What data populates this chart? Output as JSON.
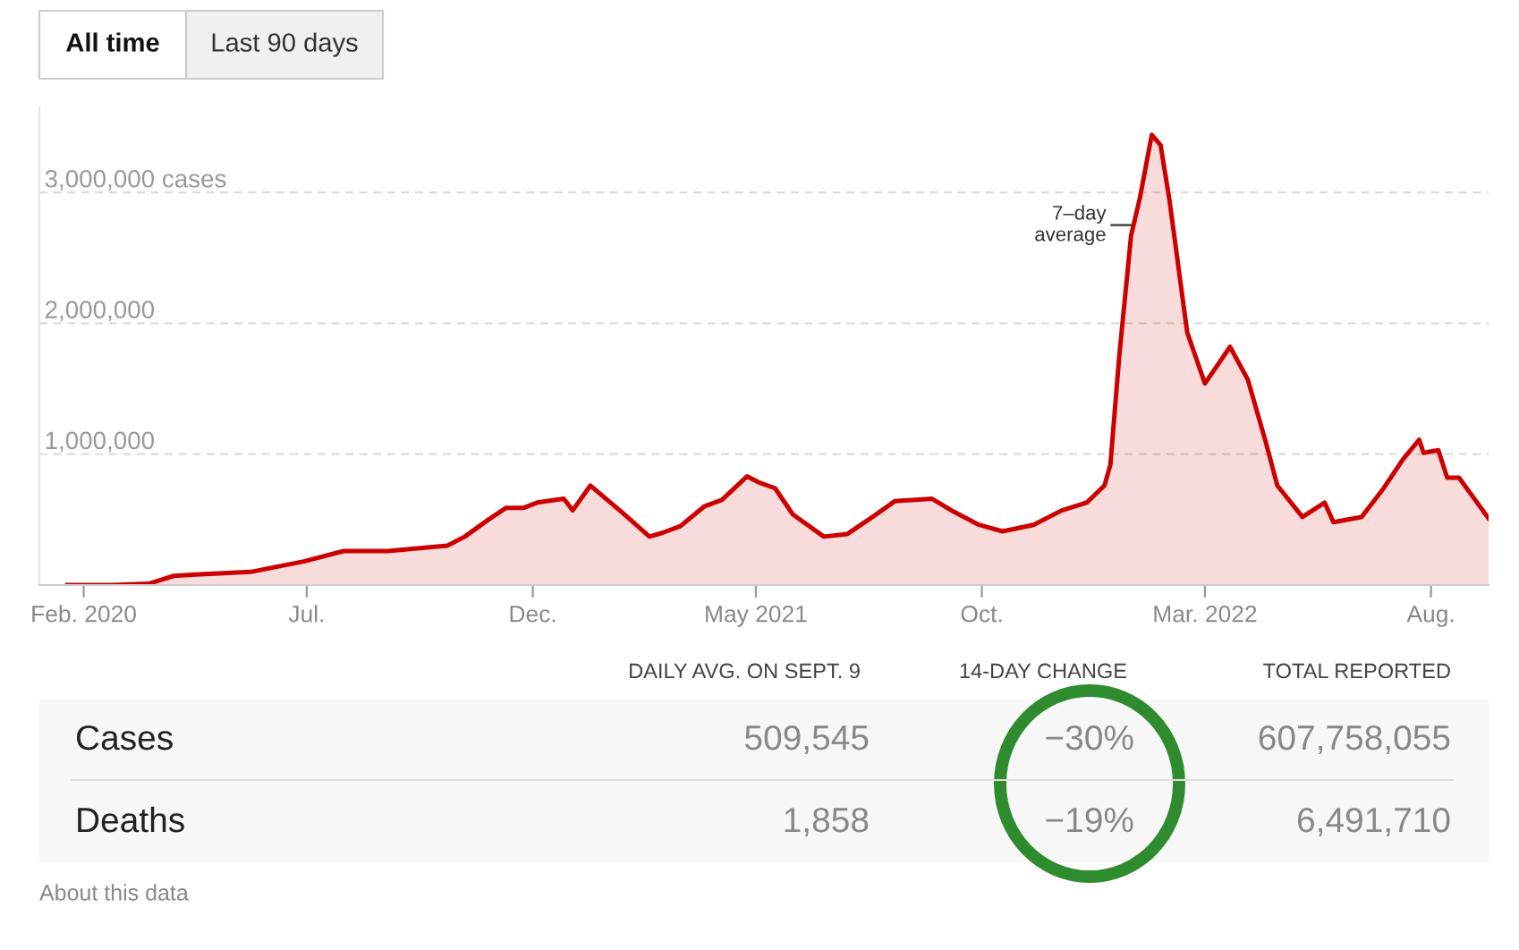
{
  "chart_data": {
    "type": "area",
    "x": [
      "2020-01-21",
      "2020-02-20",
      "2020-03-16",
      "2020-04-02",
      "2020-04-17",
      "2020-05-24",
      "2020-06-29",
      "2020-07-26",
      "2020-08-25",
      "2020-09-14",
      "2020-10-04",
      "2020-10-16",
      "2020-11-01",
      "2020-11-13",
      "2020-11-25",
      "2020-12-04",
      "2020-12-22",
      "2020-12-28",
      "2021-01-09",
      "2021-01-30",
      "2021-02-18",
      "2021-02-27",
      "2021-03-11",
      "2021-03-27",
      "2021-04-08",
      "2021-04-25",
      "2021-05-04",
      "2021-05-14",
      "2021-05-26",
      "2021-06-16",
      "2021-07-02",
      "2021-07-19",
      "2021-08-03",
      "2021-08-28",
      "2021-09-12",
      "2021-09-29",
      "2021-10-15",
      "2021-11-05",
      "2021-11-24",
      "2021-12-11",
      "2021-12-23",
      "2021-12-27",
      "2022-01-02",
      "2022-01-10",
      "2022-01-16",
      "2022-01-24",
      "2022-01-30",
      "2022-02-05",
      "2022-02-17",
      "2022-03-01",
      "2022-03-18",
      "2022-03-30",
      "2022-04-11",
      "2022-04-19",
      "2022-05-06",
      "2022-05-21",
      "2022-05-27",
      "2022-06-15",
      "2022-06-30",
      "2022-07-13",
      "2022-07-24",
      "2022-07-27",
      "2022-08-06",
      "2022-08-12",
      "2022-08-20",
      "2022-09-09"
    ],
    "series": [
      {
        "color": "#cc0000",
        "values": [
          0,
          0,
          10000,
          70000,
          80000,
          100000,
          180000,
          260000,
          260000,
          280000,
          300000,
          370000,
          500000,
          590000,
          590000,
          630000,
          660000,
          570000,
          760000,
          560000,
          370000,
          400000,
          450000,
          600000,
          650000,
          830000,
          780000,
          740000,
          540000,
          370000,
          390000,
          520000,
          640000,
          660000,
          560000,
          460000,
          410000,
          460000,
          570000,
          630000,
          760000,
          920000,
          1750000,
          2670000,
          2960000,
          3440000,
          3360000,
          2940000,
          1930000,
          1540000,
          1820000,
          1570000,
          1100000,
          760000,
          520000,
          630000,
          480000,
          520000,
          740000,
          960000,
          1110000,
          1010000,
          1030000,
          820000,
          820000,
          510000
        ]
      }
    ],
    "xlim": [
      "2020-01-02",
      "2022-09-09"
    ],
    "xticks": [
      {
        "value": "2020-02-01",
        "label": "Feb. 2020"
      },
      {
        "value": "2020-07-01",
        "label": "Jul."
      },
      {
        "value": "2020-12-01",
        "label": "Dec."
      },
      {
        "value": "2021-05-01",
        "label": "May 2021"
      },
      {
        "value": "2021-10-01",
        "label": "Oct."
      },
      {
        "value": "2022-03-01",
        "label": "Mar. 2022"
      },
      {
        "value": "2022-08-01",
        "label": "Aug."
      }
    ],
    "ylim": [
      0,
      3650000
    ],
    "yticks": [
      {
        "value": 0,
        "label": null
      },
      {
        "value": 1000000,
        "label": "1,000,000"
      },
      {
        "value": 2000000,
        "label": "2,000,000"
      },
      {
        "value": 3000000,
        "label": "3,000,000 cases"
      }
    ],
    "grid": "y",
    "annotations": [
      "All time",
      "Last 90 days",
      {
        "text": "7–day\naverage",
        "x": "2022-01-10",
        "y": 2750000
      },
      "DAILY AVG. ON SEPT. 9",
      "14-DAY CHANGE",
      "TOTAL REPORTED",
      "Cases",
      "509,545",
      "−30%",
      "607,758,055",
      "Deaths",
      "1,858",
      "−19%",
      "6,491,710",
      "About this data"
    ]
  }
}
